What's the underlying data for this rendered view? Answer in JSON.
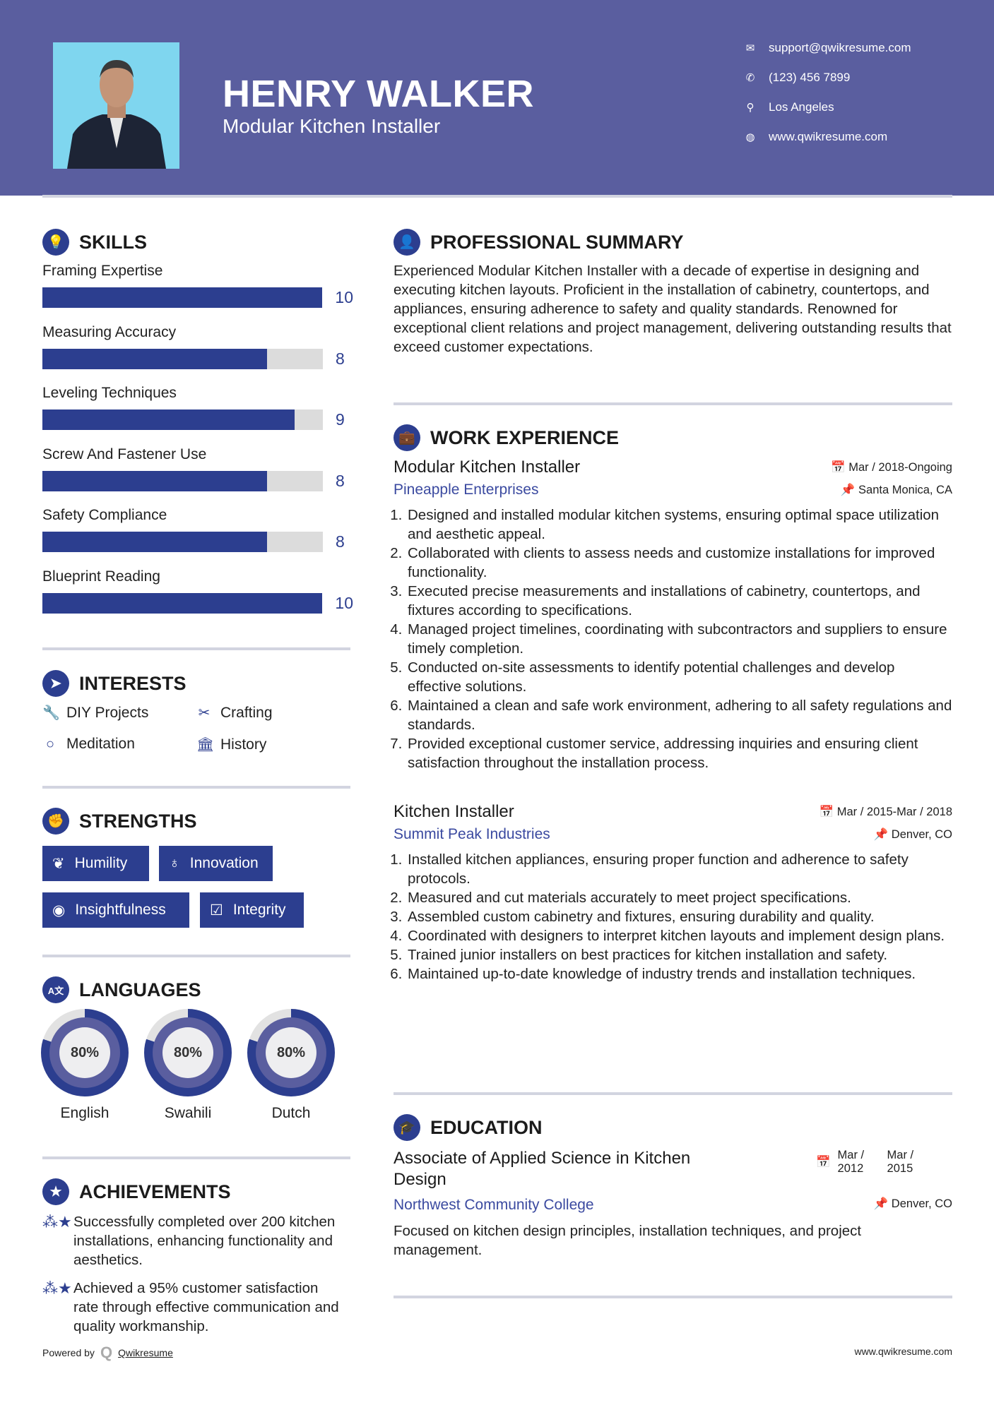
{
  "header": {
    "name": "HENRY WALKER",
    "title": "Modular Kitchen Installer",
    "contacts": [
      {
        "icon": "envelope-icon",
        "text": "support@qwikresume.com"
      },
      {
        "icon": "phone-icon",
        "text": "(123) 456 7899"
      },
      {
        "icon": "map-marker-icon",
        "text": "Los Angeles"
      },
      {
        "icon": "globe-icon",
        "text": "www.qwikresume.com"
      }
    ]
  },
  "colors": {
    "header": "#5a5e9f",
    "accent": "#2c3e8f",
    "divider": "#d2d4e0"
  },
  "skills": {
    "title": "SKILLS",
    "items": [
      {
        "label": "Framing Expertise",
        "value": "10",
        "level": 10
      },
      {
        "label": "Measuring Accuracy",
        "value": "8",
        "level": 8
      },
      {
        "label": "Leveling Techniques",
        "value": "9",
        "level": 9
      },
      {
        "label": "Screw And Fastener Use",
        "value": "8",
        "level": 8
      },
      {
        "label": "Safety Compliance",
        "value": "8",
        "level": 8
      },
      {
        "label": "Blueprint Reading",
        "value": "10",
        "level": 10
      }
    ],
    "max": 10
  },
  "interests": {
    "title": "INTERESTS",
    "items": [
      {
        "icon": "wrench-icon",
        "label": "DIY Projects"
      },
      {
        "icon": "scissors-icon",
        "label": "Crafting"
      },
      {
        "icon": "circle-icon",
        "label": "Meditation"
      },
      {
        "icon": "bank-icon",
        "label": "History"
      }
    ]
  },
  "strengths": {
    "title": "STRENGTHS",
    "items": [
      {
        "icon": "leaf-icon",
        "label": "Humility"
      },
      {
        "icon": "lightbulb-icon",
        "label": "Innovation"
      },
      {
        "icon": "eye-icon",
        "label": "Insightfulness"
      },
      {
        "icon": "check-square-icon",
        "label": "Integrity"
      }
    ]
  },
  "languages": {
    "title": "LANGUAGES",
    "items": [
      {
        "label": "English",
        "percent": "80%",
        "level": 80
      },
      {
        "label": "Swahili",
        "percent": "80%",
        "level": 80
      },
      {
        "label": "Dutch",
        "percent": "80%",
        "level": 80
      }
    ]
  },
  "achievements": {
    "title": "ACHIEVEMENTS",
    "items": [
      "Successfully completed over 200 kitchen installations, enhancing functionality and aesthetics.",
      "Achieved a 95% customer satisfaction rate through effective communication and quality workmanship."
    ]
  },
  "summary": {
    "title": "PROFESSIONAL SUMMARY",
    "text": "Experienced Modular Kitchen Installer with a decade of expertise in designing and executing kitchen layouts. Proficient in the installation of cabinetry, countertops, and appliances, ensuring adherence to safety and quality standards. Renowned for exceptional client relations and project management, delivering outstanding results that exceed customer expectations."
  },
  "work": {
    "title": "WORK EXPERIENCE",
    "jobs": [
      {
        "title": "Modular Kitchen Installer",
        "company": "Pineapple Enterprises",
        "dates": "Mar / 2018-Ongoing",
        "location": "Santa Monica, CA",
        "bullets": [
          "Designed and installed modular kitchen systems, ensuring optimal space utilization and aesthetic appeal.",
          "Collaborated with clients to assess needs and customize installations for improved functionality.",
          "Executed precise measurements and installations of cabinetry, countertops, and fixtures according to specifications.",
          "Managed project timelines, coordinating with subcontractors and suppliers to ensure timely completion.",
          "Conducted on-site assessments to identify potential challenges and develop effective solutions.",
          "Maintained a clean and safe work environment, adhering to all safety regulations and standards.",
          "Provided exceptional customer service, addressing inquiries and ensuring client satisfaction throughout the installation process."
        ]
      },
      {
        "title": "Kitchen Installer",
        "company": "Summit Peak Industries",
        "dates": "Mar / 2015-Mar / 2018",
        "location": "Denver, CO",
        "bullets": [
          "Installed kitchen appliances, ensuring proper function and adherence to safety protocols.",
          "Measured and cut materials accurately to meet project specifications.",
          "Assembled custom cabinetry and fixtures, ensuring durability and quality.",
          "Coordinated with designers to interpret kitchen layouts and implement design plans.",
          "Trained junior installers on best practices for kitchen installation and safety.",
          "Maintained up-to-date knowledge of industry trends and installation techniques."
        ]
      }
    ]
  },
  "education": {
    "title": "EDUCATION",
    "degree": "Associate of Applied Science in Kitchen Design",
    "school": "Northwest Community College",
    "start": "Mar / 2012",
    "end": "Mar / 2015",
    "location": "Denver, CO",
    "description": "Focused on kitchen design principles, installation techniques, and project management."
  },
  "footer": {
    "powered_by": "Powered by",
    "brand": "Qwikresume",
    "website": "www.qwikresume.com"
  }
}
